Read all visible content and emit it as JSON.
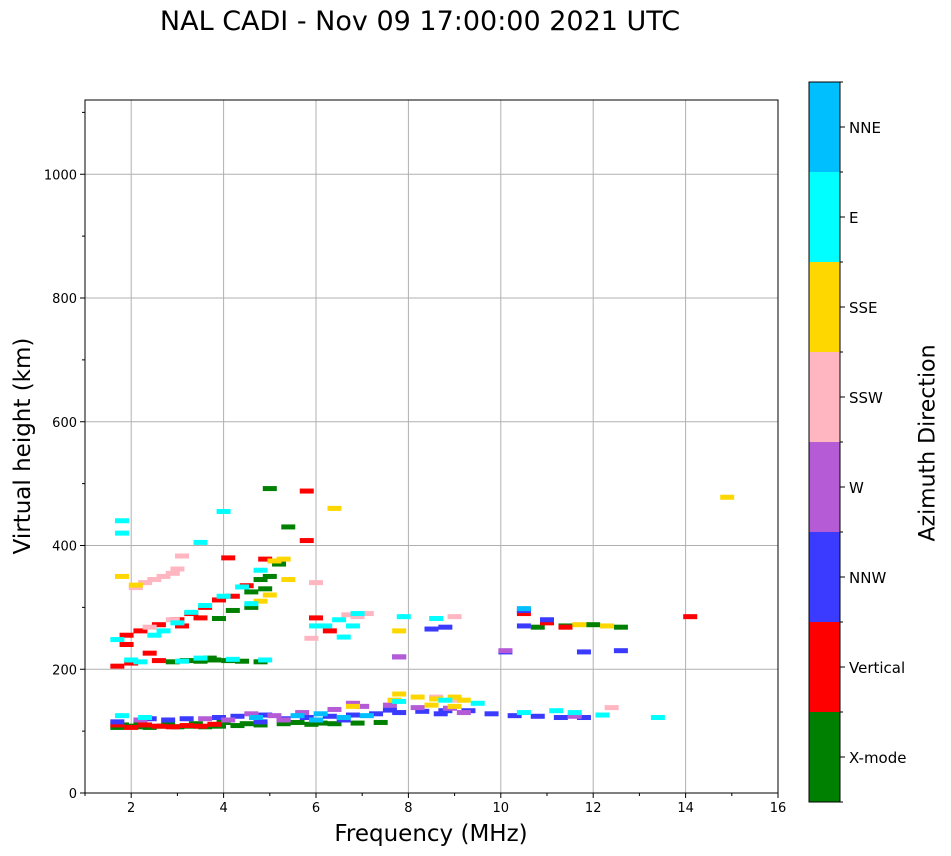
{
  "chart_data": {
    "type": "scatter",
    "title": "NAL CADI - Nov 09 17:00:00 2021 UTC",
    "xlabel": "Frequency (MHz)",
    "ylabel": "Virtual height (km)",
    "xlim": [
      1,
      16
    ],
    "ylim": [
      0,
      1120
    ],
    "xticks": [
      2,
      4,
      6,
      8,
      10,
      12,
      14,
      16
    ],
    "yticks": [
      0,
      200,
      400,
      600,
      800,
      1000
    ],
    "grid": true,
    "colorbar": {
      "label": "Azimuth Direction",
      "categories": [
        "X-mode",
        "Vertical",
        "NNW",
        "W",
        "SSW",
        "SSE",
        "E",
        "NNE"
      ],
      "colors": [
        "#008000",
        "#ff0000",
        "#3b3bff",
        "#b65bd6",
        "#ffb6c1",
        "#ffd700",
        "#00ffff",
        "#00bfff"
      ]
    },
    "series": [
      {
        "name": "X-mode",
        "points": [
          [
            1.7,
            106
          ],
          [
            1.9,
            108
          ],
          [
            2.1,
            107
          ],
          [
            2.4,
            106
          ],
          [
            2.7,
            108
          ],
          [
            3.0,
            107
          ],
          [
            3.3,
            108
          ],
          [
            3.6,
            107
          ],
          [
            3.9,
            108
          ],
          [
            4.3,
            109
          ],
          [
            4.8,
            110
          ],
          [
            5.3,
            112
          ],
          [
            5.9,
            111
          ],
          [
            6.4,
            112
          ],
          [
            6.9,
            113
          ],
          [
            7.4,
            114
          ],
          [
            2.9,
            212
          ],
          [
            3.2,
            214
          ],
          [
            3.5,
            213
          ],
          [
            3.8,
            215
          ],
          [
            4.1,
            214
          ],
          [
            4.4,
            213
          ],
          [
            4.8,
            212
          ],
          [
            3.7,
            218
          ],
          [
            4.6,
            325
          ],
          [
            4.9,
            330
          ],
          [
            5.0,
            350
          ],
          [
            4.8,
            345
          ],
          [
            5.2,
            370
          ],
          [
            4.6,
            300
          ],
          [
            4.2,
            295
          ],
          [
            3.9,
            282
          ],
          [
            5.0,
            492
          ],
          [
            5.4,
            430
          ],
          [
            10.8,
            268
          ],
          [
            11.4,
            270
          ],
          [
            12.6,
            268
          ],
          [
            12.0,
            272
          ],
          [
            1.8,
            110
          ],
          [
            2.2,
            112
          ],
          [
            2.8,
            110
          ],
          [
            3.4,
            112
          ],
          [
            4.0,
            114
          ],
          [
            4.5,
            112
          ],
          [
            5.6,
            114
          ],
          [
            6.1,
            113
          ]
        ]
      },
      {
        "name": "Vertical",
        "points": [
          [
            1.7,
            110
          ],
          [
            2.0,
            106
          ],
          [
            2.3,
            110
          ],
          [
            2.6,
            108
          ],
          [
            2.9,
            107
          ],
          [
            3.2,
            109
          ],
          [
            3.5,
            108
          ],
          [
            3.8,
            111
          ],
          [
            2.0,
            210
          ],
          [
            2.6,
            214
          ],
          [
            1.7,
            205
          ],
          [
            1.9,
            255
          ],
          [
            2.2,
            262
          ],
          [
            2.6,
            272
          ],
          [
            3.0,
            280
          ],
          [
            3.3,
            290
          ],
          [
            3.6,
            300
          ],
          [
            3.9,
            312
          ],
          [
            4.2,
            318
          ],
          [
            4.5,
            335
          ],
          [
            4.9,
            378
          ],
          [
            6.0,
            283
          ],
          [
            5.8,
            408
          ],
          [
            5.8,
            488
          ],
          [
            10.5,
            290
          ],
          [
            11.0,
            275
          ],
          [
            11.4,
            268
          ],
          [
            14.1,
            285
          ],
          [
            6.3,
            262
          ],
          [
            2.4,
            226
          ],
          [
            1.9,
            240
          ],
          [
            3.1,
            270
          ],
          [
            3.5,
            283
          ],
          [
            4.1,
            380
          ]
        ]
      },
      {
        "name": "NNW",
        "points": [
          [
            4.8,
            115
          ],
          [
            5.3,
            120
          ],
          [
            5.8,
            122
          ],
          [
            6.3,
            124
          ],
          [
            6.8,
            126
          ],
          [
            7.3,
            128
          ],
          [
            7.8,
            130
          ],
          [
            8.3,
            132
          ],
          [
            8.8,
            133
          ],
          [
            9.3,
            133
          ],
          [
            9.8,
            128
          ],
          [
            10.3,
            125
          ],
          [
            10.8,
            124
          ],
          [
            11.3,
            122
          ],
          [
            11.8,
            122
          ],
          [
            3.2,
            120
          ],
          [
            3.9,
            122
          ],
          [
            4.3,
            124
          ],
          [
            2.4,
            120
          ],
          [
            1.7,
            115
          ],
          [
            2.8,
            118
          ],
          [
            10.5,
            270
          ],
          [
            10.5,
            295
          ],
          [
            10.1,
            228
          ],
          [
            11.8,
            228
          ],
          [
            12.6,
            230
          ],
          [
            8.8,
            268
          ],
          [
            8.5,
            265
          ],
          [
            11.0,
            280
          ],
          [
            7.8,
            220
          ],
          [
            4.9,
            126
          ],
          [
            6.6,
            118
          ],
          [
            7.6,
            134
          ],
          [
            8.7,
            128
          ]
        ]
      },
      {
        "name": "W",
        "points": [
          [
            5.1,
            125
          ],
          [
            5.7,
            130
          ],
          [
            6.4,
            135
          ],
          [
            7.0,
            140
          ],
          [
            7.6,
            142
          ],
          [
            8.2,
            138
          ],
          [
            8.9,
            137
          ],
          [
            9.2,
            130
          ],
          [
            11.6,
            124
          ],
          [
            7.8,
            220
          ],
          [
            10.1,
            230
          ],
          [
            2.2,
            118
          ],
          [
            3.6,
            120
          ],
          [
            4.6,
            128
          ],
          [
            6.8,
            145
          ],
          [
            5.3,
            118
          ],
          [
            4.1,
            118
          ]
        ]
      },
      {
        "name": "SSW",
        "points": [
          [
            2.3,
            340
          ],
          [
            2.5,
            345
          ],
          [
            2.7,
            350
          ],
          [
            2.1,
            332
          ],
          [
            2.9,
            355
          ],
          [
            3.1,
            383
          ],
          [
            2.4,
            268
          ],
          [
            2.9,
            280
          ],
          [
            6.0,
            340
          ],
          [
            5.9,
            250
          ],
          [
            6.7,
            288
          ],
          [
            6.9,
            285
          ],
          [
            7.1,
            290
          ],
          [
            9.0,
            285
          ],
          [
            12.4,
            138
          ],
          [
            9.1,
            150
          ],
          [
            8.6,
            155
          ],
          [
            3.0,
            362
          ]
        ]
      },
      {
        "name": "SSE",
        "points": [
          [
            5.3,
            378
          ],
          [
            5.1,
            375
          ],
          [
            5.0,
            320
          ],
          [
            4.8,
            310
          ],
          [
            5.4,
            345
          ],
          [
            6.4,
            460
          ],
          [
            7.8,
            160
          ],
          [
            8.2,
            155
          ],
          [
            8.6,
            152
          ],
          [
            9.0,
            155
          ],
          [
            9.2,
            150
          ],
          [
            7.7,
            150
          ],
          [
            11.7,
            272
          ],
          [
            12.3,
            270
          ],
          [
            14.9,
            478
          ],
          [
            7.8,
            262
          ],
          [
            6.8,
            140
          ],
          [
            1.8,
            350
          ],
          [
            2.1,
            336
          ],
          [
            8.5,
            142
          ],
          [
            9.0,
            140
          ]
        ]
      },
      {
        "name": "E",
        "points": [
          [
            2.0,
            215
          ],
          [
            2.2,
            212
          ],
          [
            3.1,
            213
          ],
          [
            3.5,
            218
          ],
          [
            4.2,
            216
          ],
          [
            4.9,
            215
          ],
          [
            2.5,
            255
          ],
          [
            2.7,
            262
          ],
          [
            3.0,
            275
          ],
          [
            3.3,
            292
          ],
          [
            3.6,
            303
          ],
          [
            4.0,
            318
          ],
          [
            4.4,
            333
          ],
          [
            4.8,
            360
          ],
          [
            6.2,
            270
          ],
          [
            6.5,
            280
          ],
          [
            6.9,
            290
          ],
          [
            6.6,
            252
          ],
          [
            7.9,
            285
          ],
          [
            8.6,
            282
          ],
          [
            10.5,
            130
          ],
          [
            11.2,
            133
          ],
          [
            11.6,
            130
          ],
          [
            12.2,
            126
          ],
          [
            13.4,
            122
          ],
          [
            4.0,
            455
          ],
          [
            3.5,
            405
          ],
          [
            6.0,
            270
          ],
          [
            7.8,
            148
          ],
          [
            8.8,
            150
          ],
          [
            9.5,
            145
          ],
          [
            1.8,
            125
          ],
          [
            2.3,
            122
          ],
          [
            1.7,
            248
          ],
          [
            1.8,
            420
          ],
          [
            1.8,
            440
          ],
          [
            6.8,
            270
          ],
          [
            4.6,
            306
          ]
        ]
      },
      {
        "name": "NNE",
        "points": [
          [
            4.7,
            122
          ],
          [
            5.6,
            125
          ],
          [
            6.1,
            128
          ],
          [
            6.6,
            122
          ],
          [
            10.5,
            298
          ],
          [
            7.1,
            125
          ],
          [
            6.0,
            118
          ]
        ]
      }
    ]
  }
}
